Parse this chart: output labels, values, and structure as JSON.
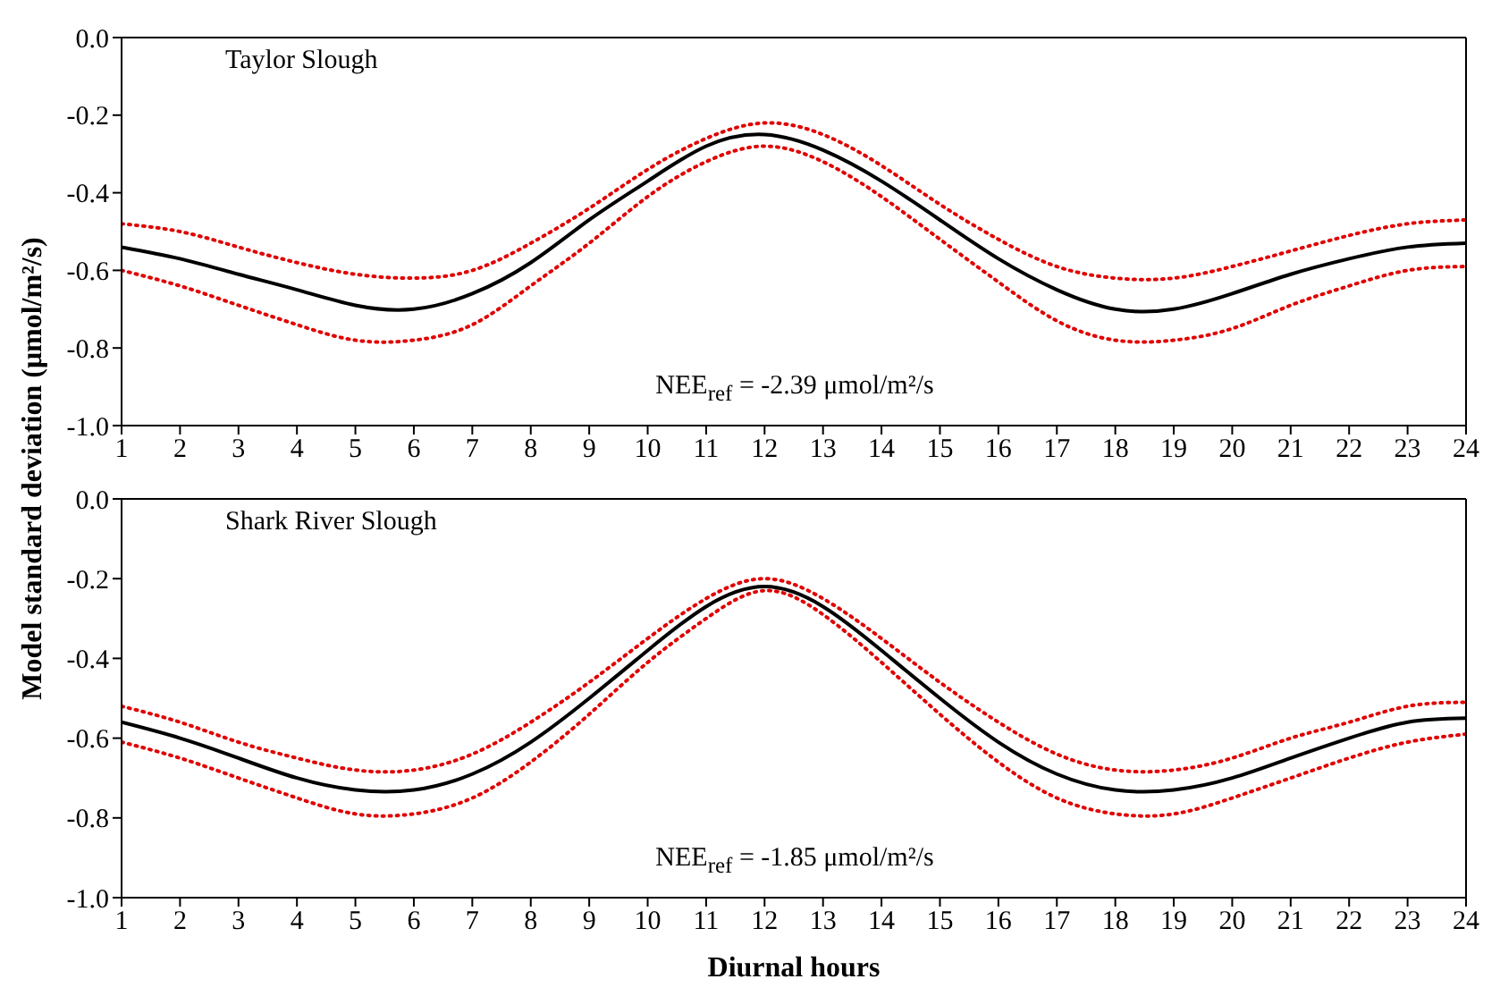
{
  "chart_data": [
    {
      "type": "line",
      "ylabel": "Model standard deviation (μmol/m²/s)",
      "annotations": [
        "Taylor Slough",
        "NEE$_{ref}$ = -2.39 μmol/m²/s"
      ],
      "x": [
        1,
        2,
        3,
        4,
        5,
        6,
        7,
        8,
        9,
        10,
        11,
        12,
        13,
        14,
        15,
        16,
        17,
        18,
        19,
        20,
        21,
        22,
        23,
        24
      ],
      "xlim": [
        1,
        24
      ],
      "xticks": [
        1,
        2,
        3,
        4,
        5,
        6,
        7,
        8,
        9,
        10,
        11,
        12,
        13,
        14,
        15,
        16,
        17,
        18,
        19,
        20,
        21,
        22,
        23,
        24
      ],
      "ylim": [
        -1,
        0
      ],
      "yticks": [
        {
          "value": -1,
          "label": "-1.0"
        },
        {
          "value": -0.8,
          "label": "-0.8"
        },
        {
          "value": -0.6,
          "label": "-0.6"
        },
        {
          "value": -0.4,
          "label": "-0.4"
        },
        {
          "value": -0.2,
          "label": "-0.2"
        },
        {
          "value": 0,
          "label": "0.0"
        }
      ],
      "marker": "none",
      "series": [
        {
          "color": "#e00000",
          "line_style": "dotted",
          "values": [
            -0.48,
            -0.5,
            -0.54,
            -0.58,
            -0.61,
            -0.62,
            -0.6,
            -0.53,
            -0.44,
            -0.34,
            -0.26,
            -0.22,
            -0.25,
            -0.33,
            -0.43,
            -0.52,
            -0.59,
            -0.62,
            -0.62,
            -0.59,
            -0.55,
            -0.51,
            -0.48,
            -0.47
          ]
        },
        {
          "color": "#e00000",
          "line_style": "dotted",
          "values": [
            -0.6,
            -0.64,
            -0.69,
            -0.74,
            -0.78,
            -0.78,
            -0.74,
            -0.64,
            -0.53,
            -0.41,
            -0.32,
            -0.28,
            -0.32,
            -0.41,
            -0.52,
            -0.63,
            -0.73,
            -0.78,
            -0.78,
            -0.75,
            -0.69,
            -0.64,
            -0.6,
            -0.59
          ]
        },
        {
          "color": "#000000",
          "line_style": "solid",
          "values": [
            -0.54,
            -0.57,
            -0.61,
            -0.65,
            -0.69,
            -0.7,
            -0.66,
            -0.58,
            -0.47,
            -0.37,
            -0.28,
            -0.25,
            -0.29,
            -0.37,
            -0.47,
            -0.57,
            -0.65,
            -0.7,
            -0.7,
            -0.66,
            -0.61,
            -0.57,
            -0.54,
            -0.53
          ]
        }
      ]
    },
    {
      "type": "line",
      "xlabel": "Diurnal hours",
      "annotations": [
        "Shark River Slough",
        "NEE$_{ref}$ = -1.85 μmol/m²/s"
      ],
      "x": [
        1,
        2,
        3,
        4,
        5,
        6,
        7,
        8,
        9,
        10,
        11,
        12,
        13,
        14,
        15,
        16,
        17,
        18,
        19,
        20,
        21,
        22,
        23,
        24
      ],
      "xlim": [
        1,
        24
      ],
      "xticks": [
        1,
        2,
        3,
        4,
        5,
        6,
        7,
        8,
        9,
        10,
        11,
        12,
        13,
        14,
        15,
        16,
        17,
        18,
        19,
        20,
        21,
        22,
        23,
        24
      ],
      "ylim": [
        -1,
        0
      ],
      "yticks": [
        {
          "value": -1,
          "label": "-1.0"
        },
        {
          "value": -0.8,
          "label": "-0.8"
        },
        {
          "value": -0.6,
          "label": "-0.6"
        },
        {
          "value": -0.4,
          "label": "-0.4"
        },
        {
          "value": -0.2,
          "label": "-0.2"
        },
        {
          "value": 0,
          "label": "0.0"
        }
      ],
      "marker": "none",
      "series": [
        {
          "color": "#e00000",
          "line_style": "dotted",
          "values": [
            -0.52,
            -0.56,
            -0.61,
            -0.65,
            -0.68,
            -0.68,
            -0.64,
            -0.56,
            -0.46,
            -0.35,
            -0.25,
            -0.2,
            -0.25,
            -0.35,
            -0.46,
            -0.56,
            -0.64,
            -0.68,
            -0.68,
            -0.65,
            -0.6,
            -0.56,
            -0.52,
            -0.51
          ]
        },
        {
          "color": "#e00000",
          "line_style": "dotted",
          "values": [
            -0.61,
            -0.65,
            -0.7,
            -0.75,
            -0.79,
            -0.79,
            -0.75,
            -0.66,
            -0.54,
            -0.41,
            -0.3,
            -0.23,
            -0.29,
            -0.41,
            -0.54,
            -0.66,
            -0.75,
            -0.79,
            -0.79,
            -0.75,
            -0.7,
            -0.65,
            -0.61,
            -0.59
          ]
        },
        {
          "color": "#000000",
          "line_style": "solid",
          "values": [
            -0.56,
            -0.6,
            -0.65,
            -0.7,
            -0.73,
            -0.73,
            -0.69,
            -0.61,
            -0.5,
            -0.38,
            -0.27,
            -0.22,
            -0.27,
            -0.38,
            -0.5,
            -0.61,
            -0.69,
            -0.73,
            -0.73,
            -0.7,
            -0.65,
            -0.6,
            -0.56,
            -0.55
          ]
        }
      ]
    }
  ]
}
